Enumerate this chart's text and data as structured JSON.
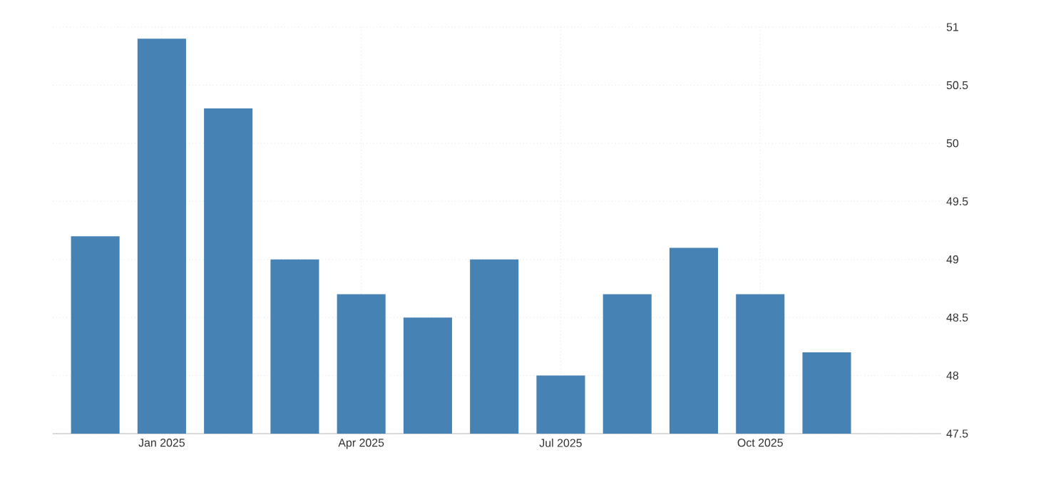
{
  "chart_data": {
    "type": "bar",
    "x": [
      "2024-12",
      "2025-01",
      "2025-02",
      "2025-03",
      "2025-04",
      "2025-05",
      "2025-06",
      "2025-07",
      "2025-08",
      "2025-09",
      "2025-10",
      "2025-11"
    ],
    "values": [
      49.2,
      50.9,
      50.3,
      49.0,
      48.7,
      48.5,
      49.0,
      48.0,
      48.7,
      49.1,
      48.7,
      48.2
    ],
    "color": "#4682b4",
    "xlim": [
      "2024-11-12",
      "2025-12-23"
    ],
    "xticks": [
      {
        "value": "2025-01",
        "label": "Jan 2025"
      },
      {
        "value": "2025-04",
        "label": "Apr 2025"
      },
      {
        "value": "2025-07",
        "label": "Jul 2025"
      },
      {
        "value": "2025-10",
        "label": "Oct 2025"
      }
    ],
    "ylim": [
      47.5,
      51
    ],
    "yticks": [
      47.5,
      48,
      48.5,
      49,
      49.5,
      50,
      50.5,
      51
    ],
    "grid": true
  }
}
